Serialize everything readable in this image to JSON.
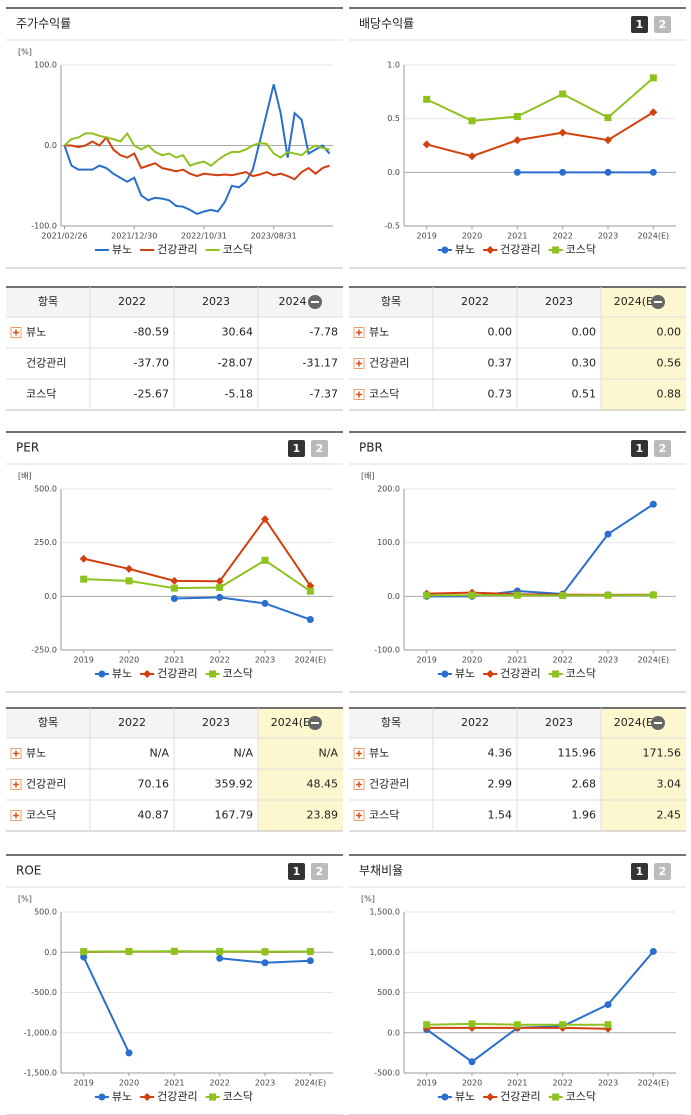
{
  "buttons": [
    "1",
    "2"
  ],
  "chart_data": [
    {
      "type": "line",
      "title": "주가수익률",
      "y_unit": "[%]",
      "categories": [
        "2021/02/26",
        null,
        null,
        null,
        null,
        null,
        null,
        null,
        null,
        null,
        "2021/12/30",
        null,
        null,
        null,
        null,
        null,
        null,
        null,
        null,
        null,
        "2022/10/31",
        null,
        null,
        null,
        null,
        null,
        null,
        null,
        null,
        null,
        "2023/08/31",
        null,
        null,
        null,
        null,
        null,
        null,
        null,
        null
      ],
      "ylim": [
        -100,
        100
      ],
      "yticks": [
        {
          "value": 100,
          "label": "100.0"
        },
        {
          "value": 0,
          "label": "0.0"
        },
        {
          "value": -100,
          "label": "-100.0"
        }
      ],
      "series": [
        {
          "name": "뷰노",
          "color": "#2a6fce",
          "values": [
            0,
            -25,
            -30,
            -30,
            -30,
            -25,
            -28,
            -35,
            -40,
            -45,
            -40,
            -62,
            -68,
            -65,
            -66,
            -68,
            -75,
            -76,
            -80,
            -85,
            -82,
            -80,
            -82,
            -70,
            -50,
            -52,
            -45,
            -30,
            5,
            40,
            76,
            40,
            -15,
            40,
            32,
            -10,
            -5,
            0,
            -10
          ]
        },
        {
          "name": "건강관리",
          "color": "#d2400f",
          "values": [
            0,
            0,
            -2,
            0,
            5,
            0,
            10,
            -5,
            -12,
            -15,
            -10,
            -28,
            -25,
            -22,
            -28,
            -30,
            -32,
            -30,
            -35,
            -38,
            -35,
            -36,
            -37,
            -36,
            -37,
            -35,
            -33,
            -38,
            -36,
            -33,
            -37,
            -35,
            -38,
            -42,
            -33,
            -28,
            -35,
            -28,
            -25
          ]
        },
        {
          "name": "코스닥",
          "color": "#8dc21f",
          "values": [
            0,
            8,
            10,
            15,
            15,
            12,
            10,
            8,
            5,
            15,
            0,
            -5,
            0,
            -8,
            -12,
            -10,
            -15,
            -12,
            -25,
            -22,
            -20,
            -25,
            -18,
            -12,
            -8,
            -8,
            -5,
            0,
            3,
            2,
            -10,
            -15,
            -8,
            -10,
            -12,
            -5,
            0,
            -3,
            -5
          ]
        }
      ]
    },
    {
      "type": "line",
      "title": "배당수익률",
      "y_unit": "",
      "categories": [
        "2019",
        "2020",
        "2021",
        "2022",
        "2023",
        "2024(E)"
      ],
      "ylim": [
        -0.5,
        1.0
      ],
      "yticks": [
        {
          "value": 1.0,
          "label": "1.0"
        },
        0.5,
        {
          "value": 0,
          "label": "0.0"
        },
        -0.5
      ],
      "series": [
        {
          "name": "뷰노",
          "color": "#2a6fce",
          "marker": "circle",
          "values": [
            null,
            null,
            0,
            0,
            0,
            0
          ]
        },
        {
          "name": "건강관리",
          "color": "#d2400f",
          "marker": "diamond",
          "values": [
            0.26,
            0.15,
            0.3,
            0.37,
            0.3,
            0.56
          ]
        },
        {
          "name": "코스닥",
          "color": "#8dc21f",
          "marker": "square",
          "values": [
            0.68,
            0.48,
            0.52,
            0.73,
            0.51,
            0.88
          ]
        }
      ]
    },
    {
      "type": "line",
      "title": "PER",
      "y_unit": "[배]",
      "categories": [
        "2019",
        "2020",
        "2021",
        "2022",
        "2023",
        "2024(E)"
      ],
      "ylim": [
        -250,
        500
      ],
      "yticks": [
        {
          "value": 500,
          "label": "500.0"
        },
        {
          "value": 250,
          "label": "250.0"
        },
        {
          "value": 0,
          "label": "0.0"
        },
        {
          "value": -250,
          "label": "-250.0"
        }
      ],
      "series": [
        {
          "name": "뷰노",
          "color": "#2a6fce",
          "marker": "circle",
          "values": [
            null,
            null,
            -10,
            -5,
            -33,
            -108
          ]
        },
        {
          "name": "건강관리",
          "color": "#d2400f",
          "marker": "diamond",
          "values": [
            175,
            128,
            72,
            70.16,
            359.92,
            48.45
          ]
        },
        {
          "name": "코스닥",
          "color": "#8dc21f",
          "marker": "square",
          "values": [
            80,
            72,
            38,
            40.87,
            167.79,
            23.89
          ]
        }
      ]
    },
    {
      "type": "line",
      "title": "PBR",
      "y_unit": "[배]",
      "categories": [
        "2019",
        "2020",
        "2021",
        "2022",
        "2023",
        "2024(E)"
      ],
      "ylim": [
        -100,
        200
      ],
      "yticks": [
        {
          "value": 200,
          "label": "200.0"
        },
        {
          "value": 100,
          "label": "100.0"
        },
        {
          "value": 0,
          "label": "0.0"
        },
        {
          "value": -100,
          "label": "-100.0"
        }
      ],
      "series": [
        {
          "name": "뷰노",
          "color": "#2a6fce",
          "marker": "circle",
          "values": [
            0,
            0,
            10,
            4.36,
            115.96,
            171.56
          ]
        },
        {
          "name": "건강관리",
          "color": "#d2400f",
          "marker": "diamond",
          "values": [
            5,
            7,
            4,
            2.99,
            2.68,
            3.04
          ]
        },
        {
          "name": "코스닥",
          "color": "#8dc21f",
          "marker": "square",
          "values": [
            2,
            2,
            2,
            1.54,
            1.96,
            2.45
          ]
        }
      ]
    },
    {
      "type": "line",
      "title": "ROE",
      "y_unit": "[%]",
      "categories": [
        "2019",
        "2020",
        "2021",
        "2022",
        "2023",
        "2024(E)"
      ],
      "ylim": [
        -1500,
        500
      ],
      "yticks": [
        {
          "value": 500,
          "label": "500.0"
        },
        {
          "value": 0,
          "label": "0.0"
        },
        {
          "value": -500,
          "label": "-500.0"
        },
        {
          "value": -1000,
          "label": "-1,000.0"
        },
        {
          "value": -1500,
          "label": "-1,500.0"
        }
      ],
      "series": [
        {
          "name": "뷰노",
          "color": "#2a6fce",
          "marker": "circle",
          "values": [
            -60,
            -1250,
            null,
            -75,
            -130,
            -105
          ]
        },
        {
          "name": "건강관리",
          "color": "#d2400f",
          "marker": "diamond",
          "values": [
            5,
            8,
            10,
            8,
            5,
            8
          ]
        },
        {
          "name": "코스닥",
          "color": "#8dc21f",
          "marker": "square",
          "values": [
            8,
            10,
            12,
            10,
            7,
            10
          ]
        }
      ]
    },
    {
      "type": "line",
      "title": "부채비율",
      "y_unit": "[%]",
      "categories": [
        "2019",
        "2020",
        "2021",
        "2022",
        "2023",
        "2024(E)"
      ],
      "ylim": [
        -500,
        1500
      ],
      "yticks": [
        {
          "value": 1500,
          "label": "1,500.0"
        },
        {
          "value": 1000,
          "label": "1,000.0"
        },
        {
          "value": 500,
          "label": "500.0"
        },
        {
          "value": 0,
          "label": "0.0"
        },
        {
          "value": -500,
          "label": "-500.0"
        }
      ],
      "series": [
        {
          "name": "뷰노",
          "color": "#2a6fce",
          "marker": "circle",
          "values": [
            40,
            -360,
            60,
            80,
            350,
            1010
          ]
        },
        {
          "name": "건강관리",
          "color": "#d2400f",
          "marker": "diamond",
          "values": [
            60,
            60,
            60,
            60,
            50,
            null
          ]
        },
        {
          "name": "코스닥",
          "color": "#8dc21f",
          "marker": "square",
          "values": [
            100,
            110,
            100,
            100,
            100,
            null
          ]
        }
      ]
    }
  ],
  "tables": [
    {
      "header": [
        "항목",
        "2022",
        "2023",
        "2024"
      ],
      "rows": [
        [
          "뷰노",
          "-80.59",
          "30.64",
          "-7.78"
        ],
        [
          "건강관리",
          "-37.70",
          "-28.07",
          "-31.17"
        ],
        [
          "코스닥",
          "-25.67",
          "-5.18",
          "-7.37"
        ]
      ]
    },
    {
      "header": [
        "항목",
        "2022",
        "2023",
        "2024(E)"
      ],
      "rows": [
        [
          "뷰노",
          "0.00",
          "0.00",
          "0.00"
        ],
        [
          "건강관리",
          "0.37",
          "0.30",
          "0.56"
        ],
        [
          "코스닥",
          "0.73",
          "0.51",
          "0.88"
        ]
      ]
    },
    {
      "header": [
        "항목",
        "2022",
        "2023",
        "2024(E)"
      ],
      "rows": [
        [
          "뷰노",
          "N/A",
          "N/A",
          "N/A"
        ],
        [
          "건강관리",
          "70.16",
          "359.92",
          "48.45"
        ],
        [
          "코스닥",
          "40.87",
          "167.79",
          "23.89"
        ]
      ]
    },
    {
      "header": [
        "항목",
        "2022",
        "2023",
        "2024(E)"
      ],
      "rows": [
        [
          "뷰노",
          "4.36",
          "115.96",
          "171.56"
        ],
        [
          "건강관리",
          "2.99",
          "2.68",
          "3.04"
        ],
        [
          "코스닥",
          "1.54",
          "1.96",
          "2.45"
        ]
      ]
    }
  ]
}
